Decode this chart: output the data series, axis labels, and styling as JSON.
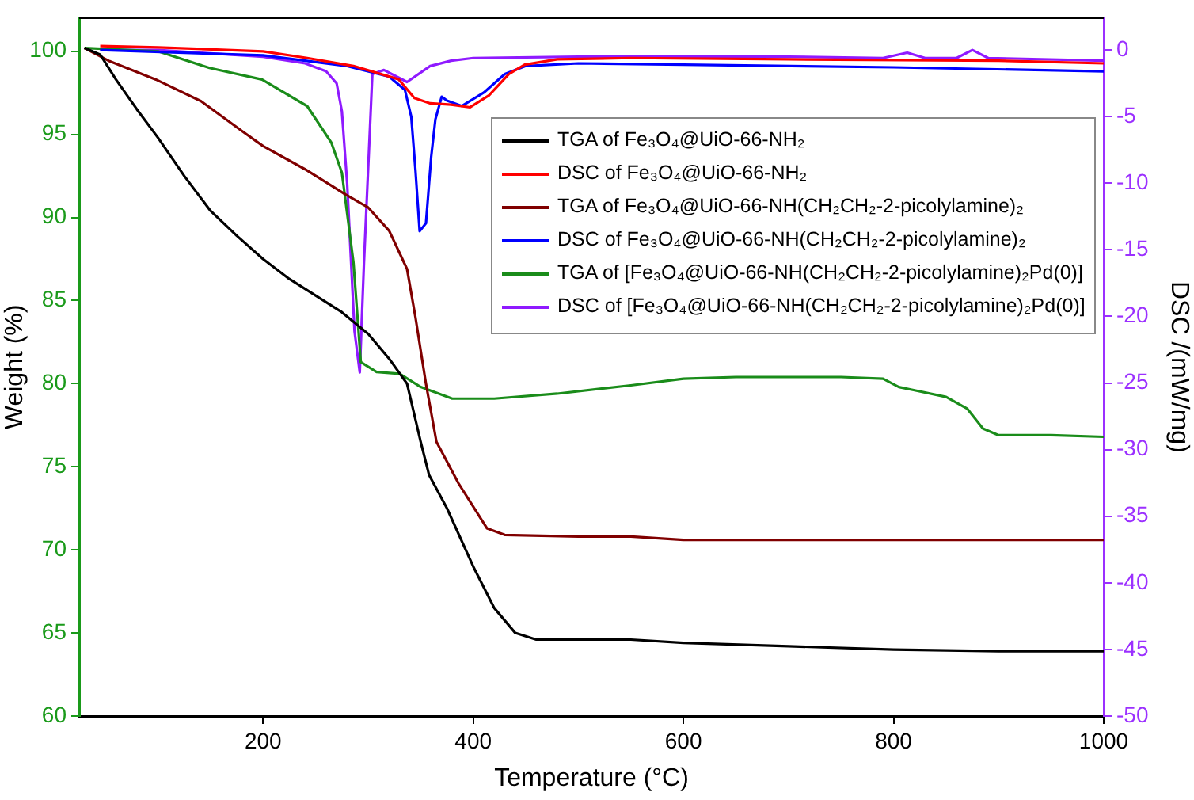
{
  "chart_data": {
    "type": "line",
    "xlabel": "Temperature (°C)",
    "ylabel": "Weight (%)",
    "y2label": "DSC /(mW/mg)",
    "xlim": [
      25,
      1000
    ],
    "xticks": [
      200,
      400,
      600,
      800,
      1000
    ],
    "ylim": [
      60,
      102
    ],
    "yticks": [
      60,
      65,
      70,
      75,
      80,
      85,
      90,
      95,
      100
    ],
    "y2lim": [
      -50,
      2.4
    ],
    "y2ticks": [
      -50,
      -45,
      -40,
      -35,
      -30,
      -25,
      -20,
      -15,
      -10,
      -5,
      0
    ],
    "grid": false,
    "legend": "right",
    "marker": "none",
    "line_style": "solid",
    "series": [
      {
        "name": "TGA of Fe₃O₄@UiO-66-NH₂",
        "color": "#000000",
        "axis": "y",
        "x": [
          30,
          45,
          60,
          80,
          100,
          125,
          150,
          175,
          200,
          225,
          250,
          275,
          300,
          320,
          337,
          350,
          358,
          375,
          400,
          420,
          440,
          460,
          550,
          600,
          700,
          800,
          900,
          1000
        ],
        "values": [
          100.2,
          99.8,
          98.3,
          96.5,
          94.8,
          92.5,
          90.4,
          88.9,
          87.5,
          86.3,
          85.3,
          84.3,
          83,
          81.5,
          80,
          76.5,
          74.5,
          72.5,
          69,
          66.5,
          65,
          64.6,
          64.6,
          64.4,
          64.2,
          64,
          63.9,
          63.9
        ]
      },
      {
        "name": "DSC of Fe₃O₄@UiO-66-NH₂",
        "color": "#ff0000",
        "axis": "y2",
        "x": [
          45,
          100,
          200,
          242,
          286,
          329,
          344,
          359,
          379,
          397,
          415,
          434,
          449,
          480,
          550,
          700,
          900,
          1000
        ],
        "values": [
          0.3,
          0.2,
          -0.1,
          -0.6,
          -1.2,
          -2.2,
          -3.6,
          -4,
          -4.1,
          -4.3,
          -3.4,
          -1.8,
          -1.1,
          -0.7,
          -0.6,
          -0.7,
          -0.8,
          -1
        ]
      },
      {
        "name": "TGA of Fe₃O₄@UiO-66-NH(CH₂CH₂-2-picolylamine)₂",
        "color": "#800000",
        "axis": "y",
        "x": [
          30,
          54,
          98,
          141,
          180,
          200,
          240,
          278,
          300,
          320,
          337,
          345,
          355,
          365,
          386,
          413,
          430,
          500,
          550,
          600,
          800,
          1000
        ],
        "values": [
          100.2,
          99.4,
          98.3,
          97,
          95.2,
          94.3,
          92.9,
          91.4,
          90.6,
          89.2,
          86.9,
          84,
          80,
          76.5,
          74,
          71.3,
          70.9,
          70.8,
          70.8,
          70.6,
          70.6,
          70.6
        ]
      },
      {
        "name": "DSC of Fe₃O₄@UiO-66-NH(CH₂CH₂-2-picolylamine)₂",
        "color": "#0000ff",
        "axis": "y2",
        "x": [
          45,
          200,
          280,
          320,
          335,
          341,
          345,
          349,
          355,
          360,
          364,
          370,
          375,
          389,
          410,
          430,
          450,
          500,
          600,
          800,
          1000
        ],
        "values": [
          0,
          -0.4,
          -1.2,
          -2,
          -3,
          -5,
          -9,
          -13.6,
          -13,
          -8,
          -5.2,
          -3.5,
          -3.8,
          -4.2,
          -3.2,
          -1.8,
          -1.2,
          -1,
          -1.1,
          -1.3,
          -1.6
        ]
      },
      {
        "name": "TGA of [Fe₃O₄@UiO-66-NH(CH₂CH₂-2-picolylamine)₂Pd(0)]",
        "color": "#1a8c1a",
        "axis": "y",
        "x": [
          30,
          100,
          149,
          199,
          242,
          265,
          275,
          286,
          293,
          308,
          330,
          350,
          380,
          420,
          480,
          550,
          600,
          650,
          700,
          750,
          790,
          805,
          820,
          850,
          870,
          885,
          900,
          950,
          1000
        ],
        "values": [
          100.2,
          100,
          99,
          98.3,
          96.7,
          94.5,
          92.7,
          87.3,
          81.3,
          80.7,
          80.6,
          79.8,
          79.1,
          79.1,
          79.4,
          79.9,
          80.3,
          80.4,
          80.4,
          80.4,
          80.3,
          79.8,
          79.6,
          79.2,
          78.5,
          77.3,
          76.9,
          76.9,
          76.8
        ]
      },
      {
        "name": "DSC of [Fe₃O₄@UiO-66-NH(CH₂CH₂-2-picolylamine)₂Pd(0)]",
        "color": "#8f1aff",
        "axis": "y2",
        "x": [
          45,
          100,
          200,
          240,
          260,
          270,
          275,
          280,
          287,
          292,
          296,
          304,
          315,
          337,
          359,
          379,
          400,
          500,
          700,
          790,
          813,
          830,
          860,
          875,
          890,
          1000
        ],
        "values": [
          0,
          0,
          -0.5,
          -1,
          -1.6,
          -2.5,
          -4.6,
          -10,
          -21.1,
          -24.2,
          -16,
          -1.8,
          -1.5,
          -2.4,
          -1.2,
          -0.8,
          -0.6,
          -0.5,
          -0.5,
          -0.6,
          -0.2,
          -0.6,
          -0.6,
          0,
          -0.6,
          -0.8
        ]
      }
    ]
  }
}
